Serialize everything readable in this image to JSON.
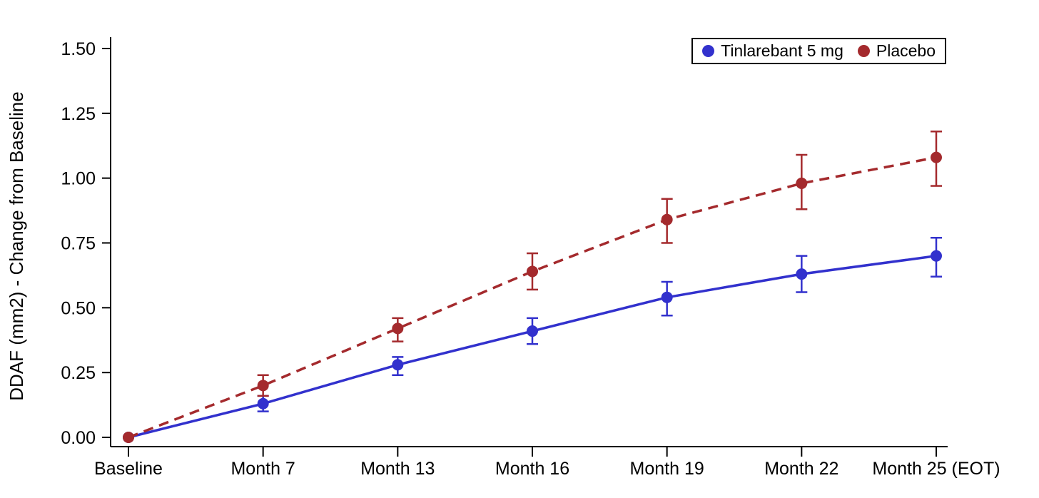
{
  "chart_data": {
    "type": "line",
    "title": "",
    "xlabel": "",
    "ylabel": "DDAF (mm2) - Change from Baseline",
    "categories": [
      "Baseline",
      "Month 7",
      "Month 13",
      "Month 16",
      "Month 19",
      "Month 22",
      "Month 25 (EOT)"
    ],
    "ylim": [
      0,
      1.5
    ],
    "yticks": [
      0,
      0.25,
      0.5,
      0.75,
      1,
      1.25,
      1.5
    ],
    "ytick_labels": [
      "0.00",
      "0.25",
      "0.50",
      "0.75",
      "1.00",
      "1.25",
      "1.50"
    ],
    "grid": false,
    "legend_position": "top-right",
    "axis_color": "#000000",
    "legend_border_color": "#000000",
    "series": [
      {
        "name": "Tinlarebant 5 mg",
        "color": "#3231CD",
        "line_style": "solid",
        "marker": "circle",
        "values": [
          0.0,
          0.13,
          0.28,
          0.41,
          0.54,
          0.63,
          0.7
        ],
        "error_low": [
          0.0,
          0.1,
          0.24,
          0.36,
          0.47,
          0.56,
          0.62
        ],
        "error_high": [
          0.0,
          0.16,
          0.31,
          0.46,
          0.6,
          0.7,
          0.77
        ]
      },
      {
        "name": "Placebo",
        "color": "#A42A2D",
        "line_style": "dashed",
        "marker": "circle",
        "values": [
          0.0,
          0.2,
          0.42,
          0.64,
          0.84,
          0.98,
          1.08
        ],
        "error_low": [
          0.0,
          0.16,
          0.37,
          0.57,
          0.75,
          0.88,
          0.97
        ],
        "error_high": [
          0.0,
          0.24,
          0.46,
          0.71,
          0.92,
          1.09,
          1.18
        ]
      }
    ]
  }
}
